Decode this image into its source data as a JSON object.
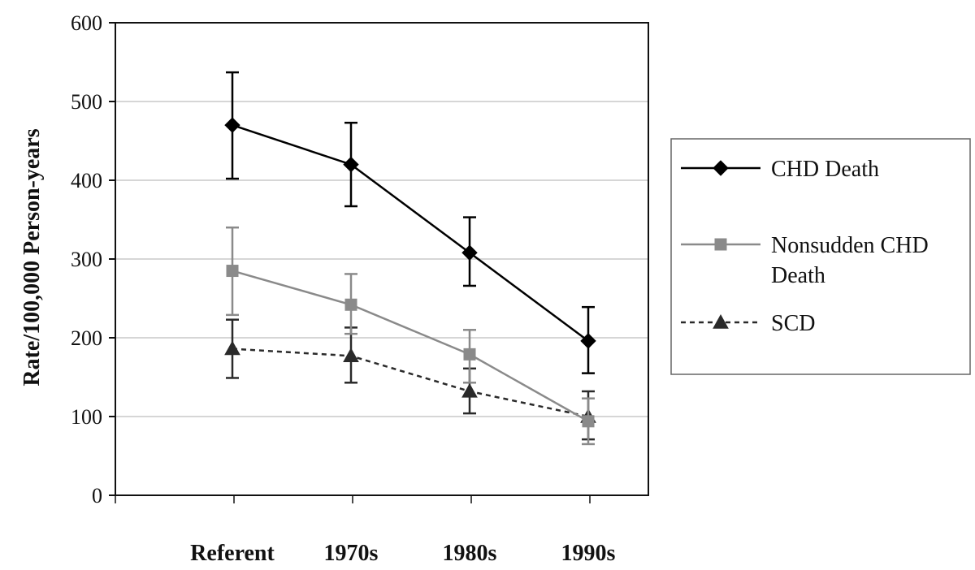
{
  "chart_data": {
    "type": "line",
    "title": "",
    "xlabel": "",
    "ylabel": "Rate/100,000 Person-years",
    "categories": [
      "Referent",
      "1970s",
      "1980s",
      "1990s"
    ],
    "ylim": [
      0,
      600
    ],
    "yticks": [
      0,
      100,
      200,
      300,
      400,
      500,
      600
    ],
    "grid": true,
    "legend_position": "right",
    "series": [
      {
        "name": "CHD Death",
        "legend_lines": [
          "CHD Death"
        ],
        "values": [
          470,
          420,
          308,
          196
        ],
        "error_low": [
          402,
          367,
          266,
          155
        ],
        "error_high": [
          537,
          473,
          353,
          239
        ],
        "marker": "diamond",
        "color": "#000000",
        "dash": "solid"
      },
      {
        "name": "Nonsudden CHD Death",
        "legend_lines": [
          "Nonsudden CHD",
          "Death"
        ],
        "values": [
          285,
          242,
          179,
          94
        ],
        "error_low": [
          229,
          205,
          143,
          65
        ],
        "error_high": [
          340,
          281,
          210,
          123
        ],
        "marker": "square",
        "color": "#8a8a8a",
        "dash": "solid"
      },
      {
        "name": "SCD",
        "legend_lines": [
          "SCD"
        ],
        "values": [
          186,
          177,
          132,
          100
        ],
        "error_low": [
          149,
          143,
          104,
          71
        ],
        "error_high": [
          223,
          213,
          161,
          132
        ],
        "marker": "triangle",
        "color": "#2a2a2a",
        "dash": "dashed"
      }
    ]
  }
}
